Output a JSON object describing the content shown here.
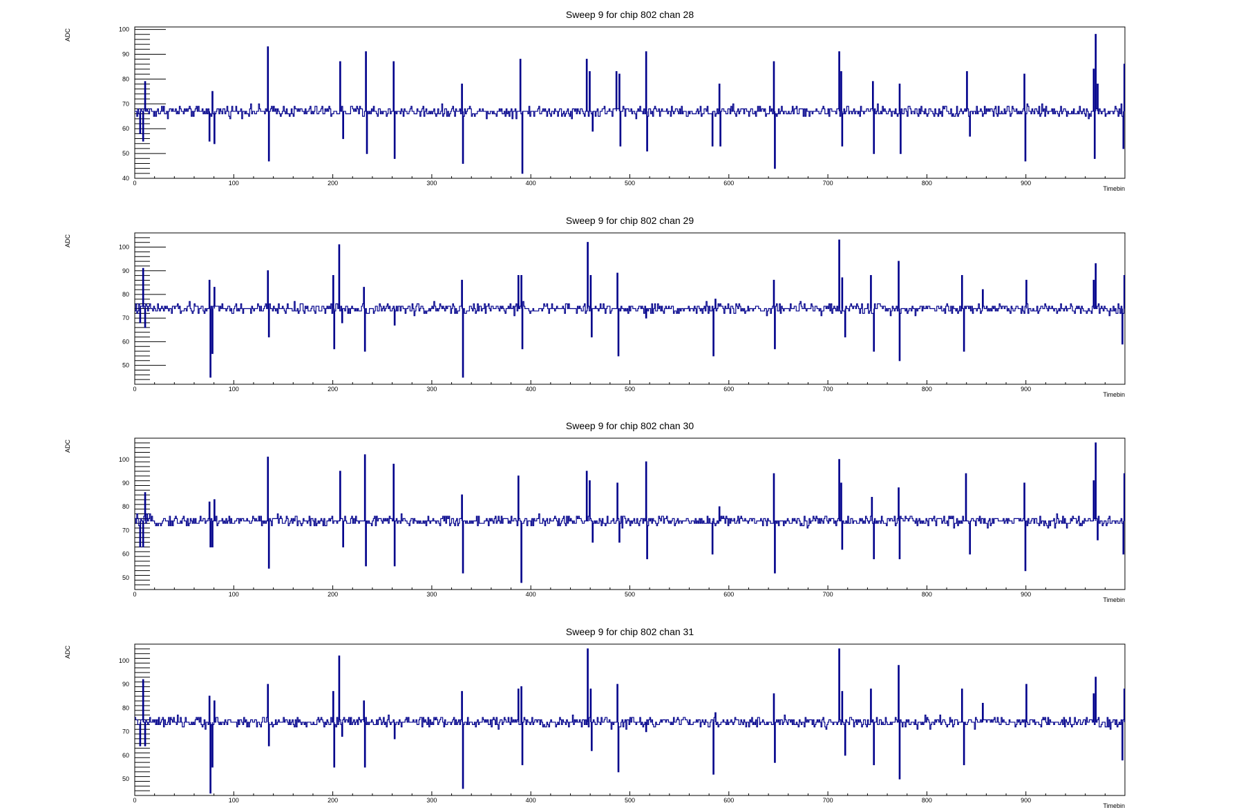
{
  "chart_data": [
    {
      "type": "line",
      "title": "Sweep 9 for chip 802 chan 28",
      "xlabel": "Timebin",
      "ylabel": "ADC",
      "xlim": [
        0,
        1000
      ],
      "ylim": [
        40,
        101
      ],
      "xticks": [
        0,
        100,
        200,
        300,
        400,
        500,
        600,
        700,
        800,
        900
      ],
      "yticks": [
        40,
        50,
        60,
        70,
        80,
        90,
        100
      ],
      "line_color": "#00008b",
      "baseline": 67,
      "spikes": [
        [
          5,
          58
        ],
        [
          8,
          55
        ],
        [
          10,
          79
        ],
        [
          75,
          55
        ],
        [
          78,
          75
        ],
        [
          80,
          54
        ],
        [
          134,
          93
        ],
        [
          135,
          47
        ],
        [
          207,
          87
        ],
        [
          210,
          56
        ],
        [
          233,
          91
        ],
        [
          234,
          50
        ],
        [
          261,
          87
        ],
        [
          262,
          48
        ],
        [
          330,
          78
        ],
        [
          331,
          46
        ],
        [
          389,
          88
        ],
        [
          391,
          42
        ],
        [
          456,
          88
        ],
        [
          459,
          83
        ],
        [
          462,
          59
        ],
        [
          486,
          83
        ],
        [
          489,
          82
        ],
        [
          490,
          53
        ],
        [
          516,
          91
        ],
        [
          517,
          51
        ],
        [
          583,
          53
        ],
        [
          590,
          78
        ],
        [
          591,
          53
        ],
        [
          645,
          87
        ],
        [
          646,
          44
        ],
        [
          711,
          91
        ],
        [
          713,
          83
        ],
        [
          714,
          53
        ],
        [
          745,
          79
        ],
        [
          746,
          50
        ],
        [
          772,
          78
        ],
        [
          773,
          50
        ],
        [
          840,
          83
        ],
        [
          843,
          57
        ],
        [
          898,
          82
        ],
        [
          899,
          47
        ],
        [
          968,
          84
        ],
        [
          969,
          48
        ],
        [
          970,
          98
        ],
        [
          972,
          78
        ],
        [
          998,
          52
        ],
        [
          999,
          86
        ]
      ]
    },
    {
      "type": "line",
      "title": "Sweep 9 for chip 802 chan 29",
      "xlabel": "Timebin",
      "ylabel": "ADC",
      "xlim": [
        0,
        1000
      ],
      "ylim": [
        42,
        106
      ],
      "xticks": [
        0,
        100,
        200,
        300,
        400,
        500,
        600,
        700,
        800,
        900
      ],
      "yticks": [
        50,
        60,
        70,
        80,
        90,
        100
      ],
      "line_color": "#00008b",
      "baseline": 74,
      "spikes": [
        [
          5,
          68
        ],
        [
          8,
          91
        ],
        [
          10,
          66
        ],
        [
          75,
          86
        ],
        [
          76,
          45
        ],
        [
          78,
          55
        ],
        [
          80,
          83
        ],
        [
          134,
          90
        ],
        [
          135,
          62
        ],
        [
          200,
          88
        ],
        [
          201,
          57
        ],
        [
          206,
          101
        ],
        [
          209,
          68
        ],
        [
          231,
          83
        ],
        [
          232,
          56
        ],
        [
          262,
          67
        ],
        [
          330,
          86
        ],
        [
          331,
          45
        ],
        [
          387,
          88
        ],
        [
          390,
          88
        ],
        [
          391,
          57
        ],
        [
          457,
          102
        ],
        [
          460,
          88
        ],
        [
          461,
          62
        ],
        [
          487,
          89
        ],
        [
          488,
          54
        ],
        [
          516,
          70
        ],
        [
          584,
          54
        ],
        [
          586,
          78
        ],
        [
          645,
          86
        ],
        [
          646,
          57
        ],
        [
          711,
          103
        ],
        [
          714,
          87
        ],
        [
          717,
          62
        ],
        [
          743,
          88
        ],
        [
          746,
          56
        ],
        [
          771,
          94
        ],
        [
          772,
          52
        ],
        [
          835,
          88
        ],
        [
          837,
          56
        ],
        [
          856,
          82
        ],
        [
          900,
          86
        ],
        [
          968,
          86
        ],
        [
          970,
          93
        ],
        [
          997,
          59
        ],
        [
          999,
          88
        ]
      ]
    },
    {
      "type": "line",
      "title": "Sweep 9 for chip 802 chan 30",
      "xlabel": "Timebin",
      "ylabel": "ADC",
      "xlim": [
        0,
        1000
      ],
      "ylim": [
        45,
        109
      ],
      "xticks": [
        0,
        100,
        200,
        300,
        400,
        500,
        600,
        700,
        800,
        900
      ],
      "yticks": [
        50,
        60,
        70,
        80,
        90,
        100
      ],
      "line_color": "#00008b",
      "baseline": 74,
      "spikes": [
        [
          5,
          63
        ],
        [
          8,
          63
        ],
        [
          10,
          86
        ],
        [
          75,
          82
        ],
        [
          76,
          63
        ],
        [
          78,
          63
        ],
        [
          80,
          83
        ],
        [
          134,
          101
        ],
        [
          135,
          54
        ],
        [
          207,
          95
        ],
        [
          210,
          63
        ],
        [
          232,
          102
        ],
        [
          233,
          55
        ],
        [
          261,
          98
        ],
        [
          262,
          55
        ],
        [
          330,
          85
        ],
        [
          331,
          52
        ],
        [
          387,
          93
        ],
        [
          390,
          48
        ],
        [
          456,
          95
        ],
        [
          459,
          91
        ],
        [
          462,
          65
        ],
        [
          487,
          90
        ],
        [
          489,
          65
        ],
        [
          516,
          99
        ],
        [
          517,
          58
        ],
        [
          583,
          60
        ],
        [
          590,
          80
        ],
        [
          645,
          94
        ],
        [
          646,
          52
        ],
        [
          711,
          100
        ],
        [
          713,
          90
        ],
        [
          714,
          62
        ],
        [
          744,
          84
        ],
        [
          746,
          58
        ],
        [
          771,
          88
        ],
        [
          772,
          58
        ],
        [
          839,
          94
        ],
        [
          843,
          60
        ],
        [
          898,
          90
        ],
        [
          899,
          53
        ],
        [
          968,
          91
        ],
        [
          970,
          107
        ],
        [
          972,
          66
        ],
        [
          998,
          60
        ],
        [
          999,
          94
        ]
      ]
    },
    {
      "type": "line",
      "title": "Sweep 9 for chip 802 chan 31",
      "xlabel": "Timebin",
      "ylabel": "ADC",
      "xlim": [
        0,
        1000
      ],
      "ylim": [
        43,
        107
      ],
      "xticks": [
        0,
        100,
        200,
        300,
        400,
        500,
        600,
        700,
        800,
        900
      ],
      "yticks": [
        50,
        60,
        70,
        80,
        90,
        100
      ],
      "line_color": "#00008b",
      "baseline": 74,
      "spikes": [
        [
          5,
          64
        ],
        [
          8,
          92
        ],
        [
          10,
          64
        ],
        [
          75,
          85
        ],
        [
          76,
          44
        ],
        [
          78,
          55
        ],
        [
          80,
          83
        ],
        [
          134,
          90
        ],
        [
          135,
          64
        ],
        [
          200,
          87
        ],
        [
          201,
          55
        ],
        [
          206,
          102
        ],
        [
          209,
          68
        ],
        [
          231,
          83
        ],
        [
          232,
          55
        ],
        [
          262,
          67
        ],
        [
          330,
          87
        ],
        [
          331,
          46
        ],
        [
          387,
          88
        ],
        [
          390,
          89
        ],
        [
          391,
          56
        ],
        [
          457,
          105
        ],
        [
          460,
          88
        ],
        [
          461,
          62
        ],
        [
          487,
          90
        ],
        [
          488,
          53
        ],
        [
          516,
          70
        ],
        [
          584,
          52
        ],
        [
          586,
          78
        ],
        [
          645,
          86
        ],
        [
          646,
          57
        ],
        [
          711,
          105
        ],
        [
          714,
          87
        ],
        [
          717,
          60
        ],
        [
          743,
          88
        ],
        [
          746,
          56
        ],
        [
          771,
          98
        ],
        [
          772,
          50
        ],
        [
          835,
          88
        ],
        [
          837,
          56
        ],
        [
          856,
          82
        ],
        [
          900,
          90
        ],
        [
          968,
          86
        ],
        [
          970,
          93
        ],
        [
          997,
          58
        ],
        [
          999,
          88
        ]
      ]
    }
  ]
}
